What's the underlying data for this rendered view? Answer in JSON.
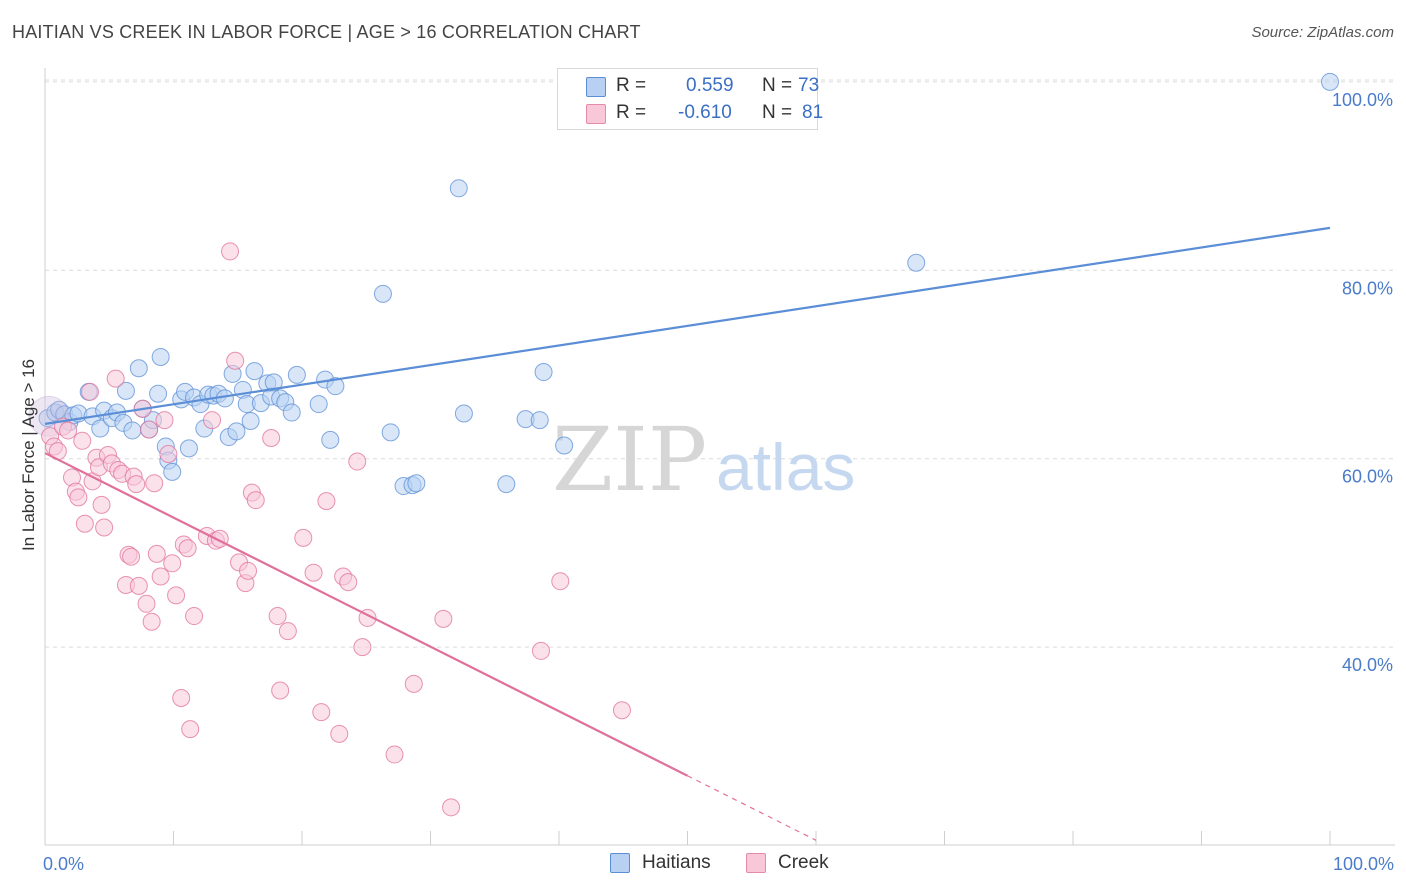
{
  "title": "HAITIAN VS CREEK IN LABOR FORCE | AGE > 16 CORRELATION CHART",
  "source": "Source: ZipAtlas.com",
  "watermark": {
    "zip": "ZIP",
    "atlas": "atlas"
  },
  "legend": {
    "r_label": "R =",
    "n_label": "N =",
    "series": [
      {
        "name": "Haitians",
        "r": "0.559",
        "n": "73",
        "fill": "#b8d1f3",
        "stroke": "#5b8ed6"
      },
      {
        "name": "Creek",
        "r": "-0.610",
        "n": "81",
        "fill": "#f8c8d8",
        "stroke": "#e58aa9"
      }
    ]
  },
  "chart_data": {
    "type": "scatter",
    "title": "HAITIAN VS CREEK IN LABOR FORCE | AGE > 16 CORRELATION CHART",
    "xlabel": "",
    "ylabel": "In Labor Force | Age > 16",
    "xlim": [
      0,
      100
    ],
    "ylim": [
      19,
      102
    ],
    "x_tick_labels": [
      {
        "value": 0,
        "label": "0.0%"
      },
      {
        "value": 100,
        "label": "100.0%"
      }
    ],
    "y_tick_labels": [
      {
        "value": 40,
        "label": "40.0%"
      },
      {
        "value": 60,
        "label": "60.0%"
      },
      {
        "value": 80,
        "label": "80.0%"
      },
      {
        "value": 100,
        "label": "100.0%"
      }
    ],
    "series": [
      {
        "name": "Haitians",
        "color": "#5b8ed6",
        "fill": "#b8d1f3",
        "trend": {
          "x0": 0,
          "y0": 63.7,
          "x1": 100,
          "y1": 84.5,
          "solid_until": 100
        },
        "points": [
          [
            0.2,
            64.3
          ],
          [
            0.8,
            64.9
          ],
          [
            1.1,
            65.2
          ],
          [
            1.5,
            64.7
          ],
          [
            1.9,
            63.9
          ],
          [
            2.2,
            64.6
          ],
          [
            2.6,
            64.8
          ],
          [
            3.4,
            67.1
          ],
          [
            3.7,
            64.5
          ],
          [
            4.3,
            63.2
          ],
          [
            4.6,
            65.1
          ],
          [
            5.2,
            64.3
          ],
          [
            5.6,
            64.9
          ],
          [
            6.1,
            63.8
          ],
          [
            6.3,
            67.2
          ],
          [
            6.8,
            63.0
          ],
          [
            7.3,
            69.6
          ],
          [
            7.6,
            65.3
          ],
          [
            8.1,
            63.1
          ],
          [
            8.4,
            64.1
          ],
          [
            8.8,
            66.9
          ],
          [
            9.0,
            70.8
          ],
          [
            9.4,
            61.3
          ],
          [
            9.6,
            59.8
          ],
          [
            9.9,
            58.6
          ],
          [
            10.6,
            66.3
          ],
          [
            10.9,
            67.1
          ],
          [
            11.2,
            61.1
          ],
          [
            11.6,
            66.5
          ],
          [
            12.1,
            65.8
          ],
          [
            12.4,
            63.2
          ],
          [
            12.7,
            66.8
          ],
          [
            13.1,
            66.7
          ],
          [
            13.5,
            66.9
          ],
          [
            14.0,
            66.4
          ],
          [
            14.3,
            62.3
          ],
          [
            14.6,
            69.0
          ],
          [
            14.9,
            62.9
          ],
          [
            15.4,
            67.3
          ],
          [
            15.7,
            65.8
          ],
          [
            16.0,
            64.0
          ],
          [
            16.3,
            69.3
          ],
          [
            16.8,
            65.9
          ],
          [
            17.3,
            68.0
          ],
          [
            17.6,
            66.6
          ],
          [
            17.8,
            68.1
          ],
          [
            18.3,
            66.4
          ],
          [
            18.7,
            66.0
          ],
          [
            19.2,
            64.9
          ],
          [
            19.6,
            68.9
          ],
          [
            21.3,
            65.8
          ],
          [
            21.8,
            68.4
          ],
          [
            22.2,
            62.0
          ],
          [
            22.6,
            67.7
          ],
          [
            26.3,
            77.5
          ],
          [
            26.9,
            62.8
          ],
          [
            27.9,
            57.1
          ],
          [
            28.6,
            57.2
          ],
          [
            28.9,
            57.4
          ],
          [
            32.2,
            88.7
          ],
          [
            32.6,
            64.8
          ],
          [
            35.9,
            57.3
          ],
          [
            37.4,
            64.2
          ],
          [
            38.5,
            64.1
          ],
          [
            38.8,
            69.2
          ],
          [
            40.4,
            61.4
          ],
          [
            67.8,
            80.8
          ],
          [
            100,
            100
          ]
        ]
      },
      {
        "name": "Creek",
        "color": "#e0709a",
        "fill": "#f8c8d8",
        "trend": {
          "x0": 0,
          "y0": 60.6,
          "x1": 60,
          "y1": 19.5,
          "solid_until": 50
        },
        "points": [
          [
            0.4,
            62.4
          ],
          [
            0.7,
            61.3
          ],
          [
            1.0,
            60.8
          ],
          [
            1.4,
            63.4
          ],
          [
            1.8,
            63.0
          ],
          [
            2.1,
            58.0
          ],
          [
            2.4,
            56.5
          ],
          [
            2.6,
            55.9
          ],
          [
            2.9,
            61.9
          ],
          [
            3.1,
            53.1
          ],
          [
            3.5,
            67.1
          ],
          [
            3.7,
            57.6
          ],
          [
            4.0,
            60.1
          ],
          [
            4.2,
            59.1
          ],
          [
            4.4,
            55.1
          ],
          [
            4.6,
            52.7
          ],
          [
            4.9,
            60.4
          ],
          [
            5.2,
            59.5
          ],
          [
            5.5,
            68.5
          ],
          [
            5.7,
            58.8
          ],
          [
            6.0,
            58.4
          ],
          [
            6.3,
            46.6
          ],
          [
            6.5,
            49.8
          ],
          [
            6.7,
            49.6
          ],
          [
            6.9,
            58.1
          ],
          [
            7.1,
            57.3
          ],
          [
            7.3,
            46.5
          ],
          [
            7.6,
            65.3
          ],
          [
            7.9,
            44.6
          ],
          [
            8.1,
            63.1
          ],
          [
            8.3,
            42.7
          ],
          [
            8.5,
            57.4
          ],
          [
            8.7,
            49.9
          ],
          [
            9.0,
            47.5
          ],
          [
            9.3,
            64.1
          ],
          [
            9.6,
            60.5
          ],
          [
            9.9,
            48.9
          ],
          [
            10.2,
            45.5
          ],
          [
            10.6,
            34.6
          ],
          [
            10.8,
            50.9
          ],
          [
            11.1,
            50.5
          ],
          [
            11.3,
            31.3
          ],
          [
            11.6,
            43.3
          ],
          [
            12.6,
            51.8
          ],
          [
            13.0,
            64.1
          ],
          [
            13.3,
            51.3
          ],
          [
            13.6,
            51.5
          ],
          [
            14.4,
            82.0
          ],
          [
            14.8,
            70.4
          ],
          [
            15.1,
            49.0
          ],
          [
            15.6,
            46.8
          ],
          [
            15.8,
            48.1
          ],
          [
            16.1,
            56.4
          ],
          [
            16.4,
            55.6
          ],
          [
            17.6,
            62.2
          ],
          [
            18.1,
            43.3
          ],
          [
            18.3,
            35.4
          ],
          [
            18.9,
            41.7
          ],
          [
            20.1,
            51.6
          ],
          [
            20.9,
            47.9
          ],
          [
            21.5,
            33.1
          ],
          [
            21.9,
            55.5
          ],
          [
            22.9,
            30.8
          ],
          [
            23.2,
            47.5
          ],
          [
            23.6,
            46.9
          ],
          [
            24.3,
            59.7
          ],
          [
            24.7,
            40.0
          ],
          [
            25.1,
            43.1
          ],
          [
            27.2,
            28.6
          ],
          [
            28.7,
            36.1
          ],
          [
            31.0,
            43.0
          ],
          [
            31.6,
            23.0
          ],
          [
            38.6,
            39.6
          ],
          [
            40.1,
            47.0
          ],
          [
            44.9,
            33.3
          ]
        ]
      }
    ]
  }
}
